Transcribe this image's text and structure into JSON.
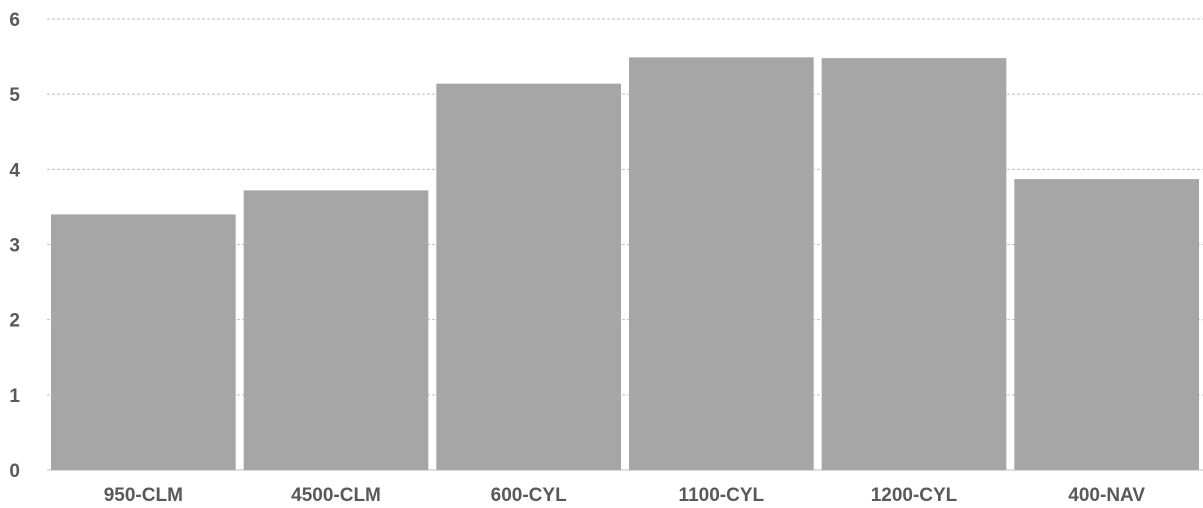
{
  "chart_data": {
    "type": "bar",
    "categories": [
      "950-CLM",
      "4500-CLM",
      "600-CYL",
      "1100-CYL",
      "1200-CYL",
      "400-NAV"
    ],
    "values": [
      3.4,
      3.72,
      5.14,
      5.49,
      5.48,
      3.87
    ],
    "ylim": [
      0,
      6
    ],
    "yticks": [
      "0",
      "1",
      "2",
      "3",
      "4",
      "5",
      "6"
    ],
    "grid": true,
    "legend": "none",
    "bar_color": "#a6a6a6",
    "title": "",
    "xlabel": "",
    "ylabel": ""
  }
}
